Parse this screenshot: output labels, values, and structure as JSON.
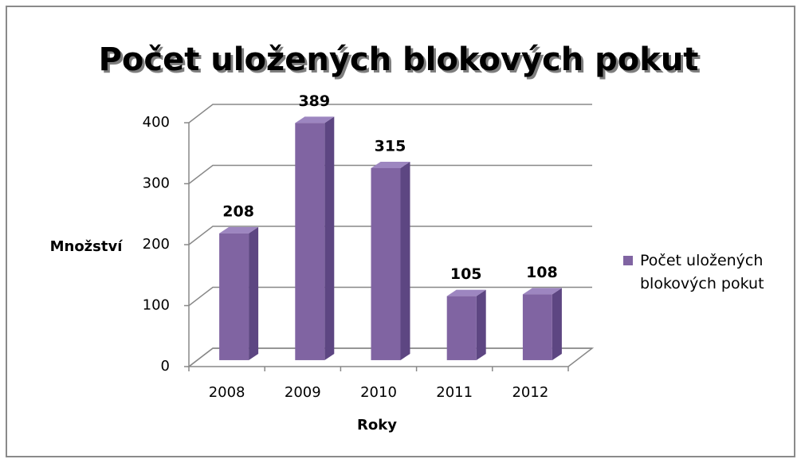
{
  "chart_data": {
    "type": "bar3d",
    "title": "Počet uložených blokových pokut",
    "x_label": "Roky",
    "y_label": "Množství",
    "categories": [
      "2008",
      "2009",
      "2010",
      "2011",
      "2012"
    ],
    "series": [
      {
        "name": "Počet uložených blokových pokut",
        "color": "#8064a2",
        "values": [
          208,
          389,
          315,
          105,
          108
        ]
      }
    ],
    "ylim": [
      0,
      400
    ],
    "yticks": [
      0,
      100,
      200,
      300,
      400
    ],
    "grid": true,
    "legend": "right"
  }
}
